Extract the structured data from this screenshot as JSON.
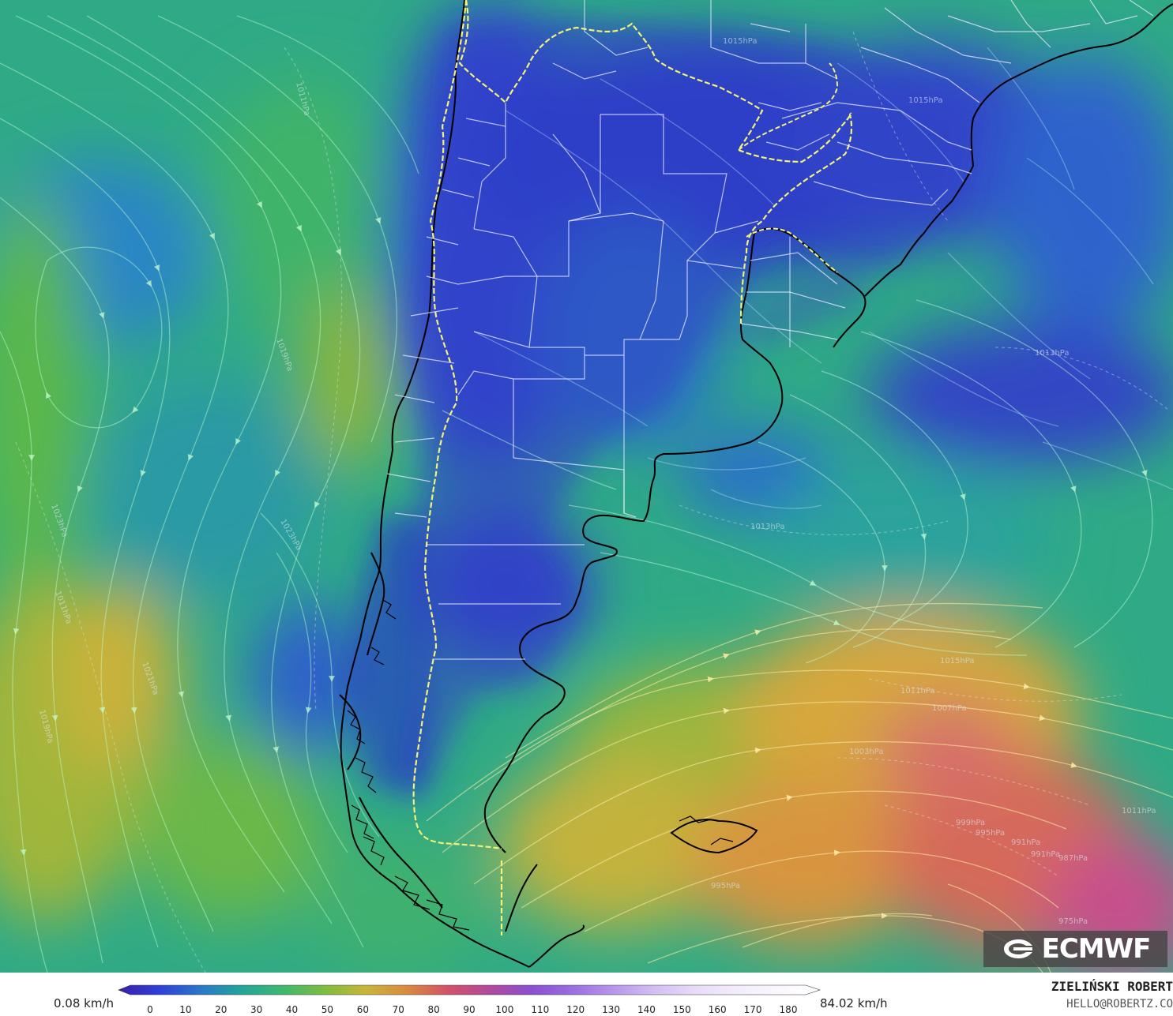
{
  "legend": {
    "min_label": "0.08 km/h",
    "max_label": "84.02 km/h",
    "ticks": [
      "0",
      "10",
      "20",
      "30",
      "40",
      "50",
      "60",
      "70",
      "80",
      "90",
      "100",
      "110",
      "120",
      "130",
      "140",
      "150",
      "160",
      "170",
      "180"
    ],
    "colors": [
      "#3b1fa8",
      "#2f3fd8",
      "#2a78c8",
      "#23a59a",
      "#3fb870",
      "#7ebd3e",
      "#c9b53a",
      "#d98a3e",
      "#d2506a",
      "#b04a9c",
      "#8a4fd0",
      "#9a6ee0",
      "#b896ec",
      "#d3bff2",
      "#e8dcf8",
      "#f3edfb",
      "#faf7fd",
      "#ffffff"
    ]
  },
  "credit": {
    "name": "ZIELIŃSKI ROBERT",
    "email": "HELLO@ROBERTZ.CO"
  },
  "logo": {
    "text": "ECMWF"
  },
  "map": {
    "isobar_labels": [
      "1011hPa",
      "1015hPa",
      "1015hPa",
      "1013hPa",
      "1019hPa",
      "1023hPa",
      "1013hPa",
      "1015hPa",
      "1011hPa",
      "1007hPa",
      "1003hPa",
      "999hPa",
      "995hPa",
      "991hPa",
      "991hPa",
      "987hPa",
      "975hPa",
      "1011hPa",
      "1023hPa",
      "1011hPa",
      "1019hPa",
      "1021hPa",
      "995hPa"
    ]
  }
}
